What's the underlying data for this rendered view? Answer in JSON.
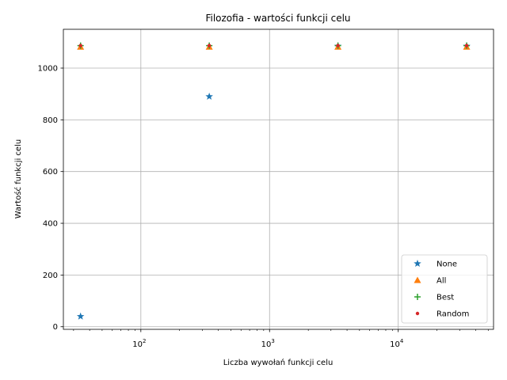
{
  "chart_data": {
    "type": "scatter",
    "title": "Filozofia - wartości funkcji celu",
    "xlabel": "Liczba wywołań funkcji celu",
    "ylabel": "Wartość funkcji celu",
    "xscale": "log",
    "xlim": [
      25,
      55000
    ],
    "ylim": [
      -10,
      1150
    ],
    "x_ticks": [
      {
        "value": 100,
        "base": "10",
        "exp": "2"
      },
      {
        "value": 1000,
        "base": "10",
        "exp": "3"
      },
      {
        "value": 10000,
        "base": "10",
        "exp": "4"
      }
    ],
    "y_ticks": [
      0,
      200,
      400,
      600,
      800,
      1000
    ],
    "y_tick_labels": [
      "0",
      "200",
      "400",
      "600",
      "800",
      "1000"
    ],
    "grid": true,
    "legend_position": "lower-right",
    "series": [
      {
        "name": "None",
        "marker": "star",
        "color": "#1f77b4",
        "points": [
          [
            34,
            40
          ],
          [
            340,
            890
          ],
          [
            3400,
            1085
          ],
          [
            34000,
            1085
          ]
        ]
      },
      {
        "name": "All",
        "marker": "triangle",
        "color": "#ff7f0e",
        "points": [
          [
            34,
            1082
          ],
          [
            340,
            1082
          ],
          [
            3400,
            1082
          ],
          [
            34000,
            1082
          ]
        ]
      },
      {
        "name": "Best",
        "marker": "plus",
        "color": "#2ca02c",
        "points": [
          [
            34,
            1087
          ],
          [
            340,
            1087
          ],
          [
            3400,
            1087
          ],
          [
            34000,
            1087
          ]
        ]
      },
      {
        "name": "Random",
        "marker": "dot",
        "color": "#d62728",
        "points": [
          [
            34,
            1087
          ],
          [
            340,
            1087
          ],
          [
            3400,
            1087
          ],
          [
            34000,
            1087
          ]
        ]
      }
    ]
  }
}
